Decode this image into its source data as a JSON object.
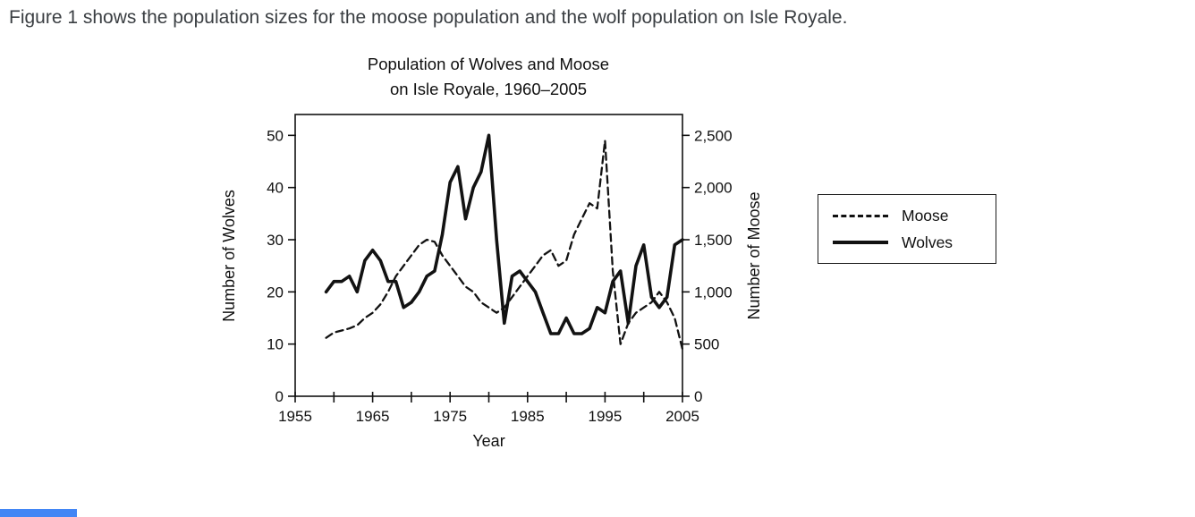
{
  "page": {
    "caption": "Figure 1 shows the population sizes for the moose population and the wolf population on Isle Royale."
  },
  "colors": {
    "ink": "#121212",
    "caption_text": "#3a3e42",
    "accent_bar": "#4286f5"
  },
  "chart_data": {
    "type": "line",
    "title_line1": "Population of Wolves and Moose",
    "title_line2": "on Isle Royale, 1960–2005",
    "xlabel": "Year",
    "ylabel_left": "Number of Wolves",
    "ylabel_right": "Number of Moose",
    "xlim": [
      1955,
      2005
    ],
    "x_ticks_labeled": [
      1955,
      1965,
      1975,
      1985,
      1995,
      2005
    ],
    "x_tick_minor_interval": 5,
    "left_axis": {
      "ticks": [
        0,
        10,
        20,
        30,
        40,
        50
      ],
      "lim": [
        0,
        54
      ]
    },
    "right_axis": {
      "values": [
        0,
        500,
        1000,
        1500,
        2000,
        2500
      ],
      "ticks": [
        "0",
        "500",
        "1,000",
        "1,500",
        "2,000",
        "2,500"
      ],
      "lim": [
        0,
        2700
      ]
    },
    "legend": [
      {
        "label": "Moose",
        "style": "dashed"
      },
      {
        "label": "Wolves",
        "style": "solid"
      }
    ],
    "series": [
      {
        "name": "Moose",
        "axis": "right",
        "style": "dashed",
        "x": [
          1959,
          1960,
          1961,
          1962,
          1963,
          1964,
          1965,
          1966,
          1967,
          1968,
          1969,
          1970,
          1971,
          1972,
          1973,
          1974,
          1975,
          1976,
          1977,
          1978,
          1979,
          1980,
          1981,
          1982,
          1983,
          1984,
          1985,
          1986,
          1987,
          1988,
          1989,
          1990,
          1991,
          1992,
          1993,
          1994,
          1995,
          1996,
          1997,
          1998,
          1999,
          2000,
          2001,
          2002,
          2003,
          2004,
          2005
        ],
        "y": [
          560,
          610,
          630,
          650,
          680,
          750,
          800,
          880,
          1000,
          1150,
          1250,
          1350,
          1450,
          1500,
          1480,
          1350,
          1250,
          1150,
          1050,
          1000,
          900,
          850,
          800,
          850,
          950,
          1050,
          1150,
          1250,
          1350,
          1400,
          1250,
          1300,
          1550,
          1700,
          1850,
          1800,
          2450,
          1200,
          500,
          700,
          800,
          850,
          900,
          1000,
          900,
          750,
          450
        ]
      },
      {
        "name": "Wolves",
        "axis": "left",
        "style": "solid",
        "x": [
          1959,
          1960,
          1961,
          1962,
          1963,
          1964,
          1965,
          1966,
          1967,
          1968,
          1969,
          1970,
          1971,
          1972,
          1973,
          1974,
          1975,
          1976,
          1977,
          1978,
          1979,
          1980,
          1981,
          1982,
          1983,
          1984,
          1985,
          1986,
          1987,
          1988,
          1989,
          1990,
          1991,
          1992,
          1993,
          1994,
          1995,
          1996,
          1997,
          1998,
          1999,
          2000,
          2001,
          2002,
          2003,
          2004,
          2005
        ],
        "y": [
          20,
          22,
          22,
          23,
          20,
          26,
          28,
          26,
          22,
          22,
          17,
          18,
          20,
          23,
          24,
          31,
          41,
          44,
          34,
          40,
          43,
          50,
          30,
          14,
          23,
          24,
          22,
          20,
          16,
          12,
          12,
          15,
          12,
          12,
          13,
          17,
          16,
          22,
          24,
          14,
          25,
          29,
          19,
          17,
          19,
          29,
          30
        ]
      }
    ]
  }
}
